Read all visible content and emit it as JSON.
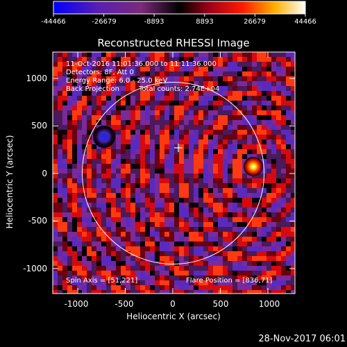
{
  "title": "Reconstructed RHESSI Image",
  "colorbar": {
    "ticks": [
      "-44466",
      "-26679",
      "-8893",
      "8893",
      "26679",
      "44466"
    ]
  },
  "annotations": {
    "line1": "11-Oct-2016 11:01:36.000 to 11:11:36.000",
    "line2": "Detectors: 8F, Att 0",
    "line3": "Energy Range: 6.0 - 25.0 keV",
    "line4a": "Back Projection",
    "line4b": "Total counts: 2.74E+04",
    "spin_axis": "Spin Axis = [51,221]",
    "flare_position": "Flare Position = [836,71]"
  },
  "axes": {
    "xlabel": "Heliocentric X (arcsec)",
    "ylabel": "Heliocentric Y (arcsec)",
    "xticks": [
      "-1000",
      "-500",
      "0",
      "500",
      "1000"
    ],
    "yticks": [
      "1000",
      "500",
      "0",
      "-500",
      "-1000"
    ]
  },
  "footer": "28-Nov-2017 06:01",
  "colors": {
    "background": "#000000",
    "text": "#ffffff",
    "low_end": "#0000ff",
    "mid": "#000000",
    "high_end": "#ffffff",
    "red": "#ff2a00",
    "purple": "#7a2a9a"
  }
}
